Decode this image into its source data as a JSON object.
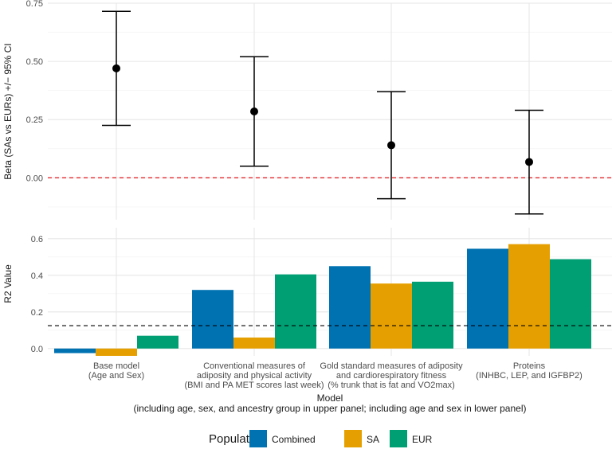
{
  "chart_data": [
    {
      "type": "errorbar",
      "panel": "upper",
      "ylabel": "Beta (SAs vs EURs) +/− 95% CI",
      "ylim": [
        -0.18,
        0.75
      ],
      "yticks": [
        "0.00",
        "0.25",
        "0.50",
        "0.75"
      ],
      "reference_line": {
        "y": 0,
        "color": "#e41a1c",
        "style": "dashed"
      },
      "points": [
        {
          "model": "Base model",
          "beta": 0.47,
          "lower": 0.225,
          "upper": 0.715
        },
        {
          "model": "Conventional measures",
          "beta": 0.285,
          "lower": 0.05,
          "upper": 0.52
        },
        {
          "model": "Gold standard measures",
          "beta": 0.14,
          "lower": -0.09,
          "upper": 0.37
        },
        {
          "model": "Proteins",
          "beta": 0.068,
          "lower": -0.155,
          "upper": 0.29
        }
      ]
    },
    {
      "type": "bar",
      "panel": "lower",
      "ylabel": "R2 Value",
      "ylim": [
        -0.04,
        0.66
      ],
      "yticks": [
        "0.0",
        "0.2",
        "0.4",
        "0.6"
      ],
      "reference_line": {
        "y": 0.125,
        "color": "#000000",
        "style": "dashed"
      },
      "categories": [
        [
          "Base model",
          "(Age and Sex)"
        ],
        [
          "Conventional measures of",
          "adiposity and physical activity",
          "(BMI and PA MET scores last week)"
        ],
        [
          "Gold standard measures of adiposity",
          "and cardiorespiratory fitness",
          "(% trunk that is fat and VO2max)"
        ],
        [
          "Proteins",
          "(INHBC, LEP, and IGFBP2)"
        ]
      ],
      "series": [
        {
          "name": "Combined",
          "color": "#0072b2",
          "values": [
            -0.025,
            0.32,
            0.45,
            0.545
          ]
        },
        {
          "name": "SA",
          "color": "#e69f00",
          "values": [
            -0.04,
            0.06,
            0.355,
            0.57
          ]
        },
        {
          "name": "EUR",
          "color": "#009e73",
          "values": [
            0.07,
            0.405,
            0.365,
            0.488
          ]
        }
      ],
      "xlabel": "Model",
      "xlabel_sub": "(including age, sex, and ancestry group in upper panel; including age and sex in lower panel)"
    }
  ],
  "legend": {
    "title": "Population",
    "items": [
      {
        "label": "Combined",
        "color": "#0072b2"
      },
      {
        "label": "SA",
        "color": "#e69f00"
      },
      {
        "label": "EUR",
        "color": "#009e73"
      }
    ]
  }
}
